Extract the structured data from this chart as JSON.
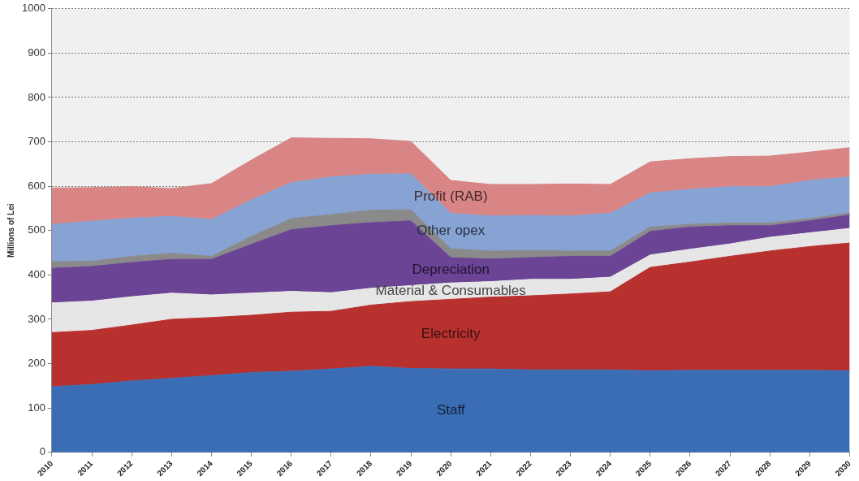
{
  "chart_data": {
    "type": "area",
    "ylabel": "Millions of Lei",
    "stacked": true,
    "grid": "y",
    "marker": "none",
    "categories": [
      "2010",
      "2011",
      "2012",
      "2013",
      "2014",
      "2015",
      "2016",
      "2017",
      "2018",
      "2019",
      "2020",
      "2021",
      "2022",
      "2023",
      "2024",
      "2025",
      "2026",
      "2027",
      "2028",
      "2029",
      "2030"
    ],
    "ylim": [
      0,
      1000
    ],
    "yticks": [
      0,
      100,
      200,
      300,
      400,
      500,
      600,
      700,
      800,
      900,
      1000
    ],
    "series": [
      {
        "name": "Staff",
        "color": "#3b6db4",
        "values": [
          148,
          153,
          161,
          167,
          173,
          180,
          183,
          188,
          194,
          189,
          188,
          188,
          186,
          186,
          186,
          184,
          185,
          185,
          185,
          185,
          184
        ]
      },
      {
        "name": "Electricity",
        "color": "#b8312f",
        "values": [
          122,
          122,
          126,
          133,
          131,
          129,
          133,
          130,
          138,
          151,
          157,
          162,
          167,
          171,
          176,
          233,
          244,
          257,
          269,
          279,
          288
        ]
      },
      {
        "name": "Material & Consumables",
        "color": "#e6e6e6",
        "values": [
          67,
          66,
          64,
          59,
          51,
          50,
          47,
          42,
          38,
          36,
          37,
          35,
          37,
          33,
          33,
          28,
          29,
          28,
          31,
          31,
          33
        ]
      },
      {
        "name": "Depreciation",
        "color": "#6b4496",
        "values": [
          78,
          78,
          77,
          76,
          80,
          110,
          139,
          151,
          148,
          146,
          57,
          51,
          49,
          52,
          47,
          53,
          50,
          41,
          26,
          27,
          30
        ]
      },
      {
        "color": "#8a8a8a",
        "values": [
          15,
          12,
          14,
          14,
          7,
          18,
          25,
          25,
          28,
          25,
          20,
          18,
          16,
          12,
          12,
          10,
          6,
          6,
          6,
          5,
          5
        ]
      },
      {
        "name": "Other opex",
        "color": "#87a3d4",
        "values": [
          84,
          90,
          86,
          83,
          83,
          82,
          81,
          85,
          81,
          81,
          80,
          79,
          79,
          79,
          85,
          77,
          79,
          82,
          82,
          86,
          81
        ]
      },
      {
        "name": "Profit (RAB)",
        "color": "#d98585",
        "values": [
          82,
          76,
          71,
          63,
          81,
          90,
          101,
          87,
          80,
          73,
          74,
          71,
          70,
          72,
          65,
          70,
          69,
          68,
          69,
          64,
          66
        ]
      }
    ]
  }
}
